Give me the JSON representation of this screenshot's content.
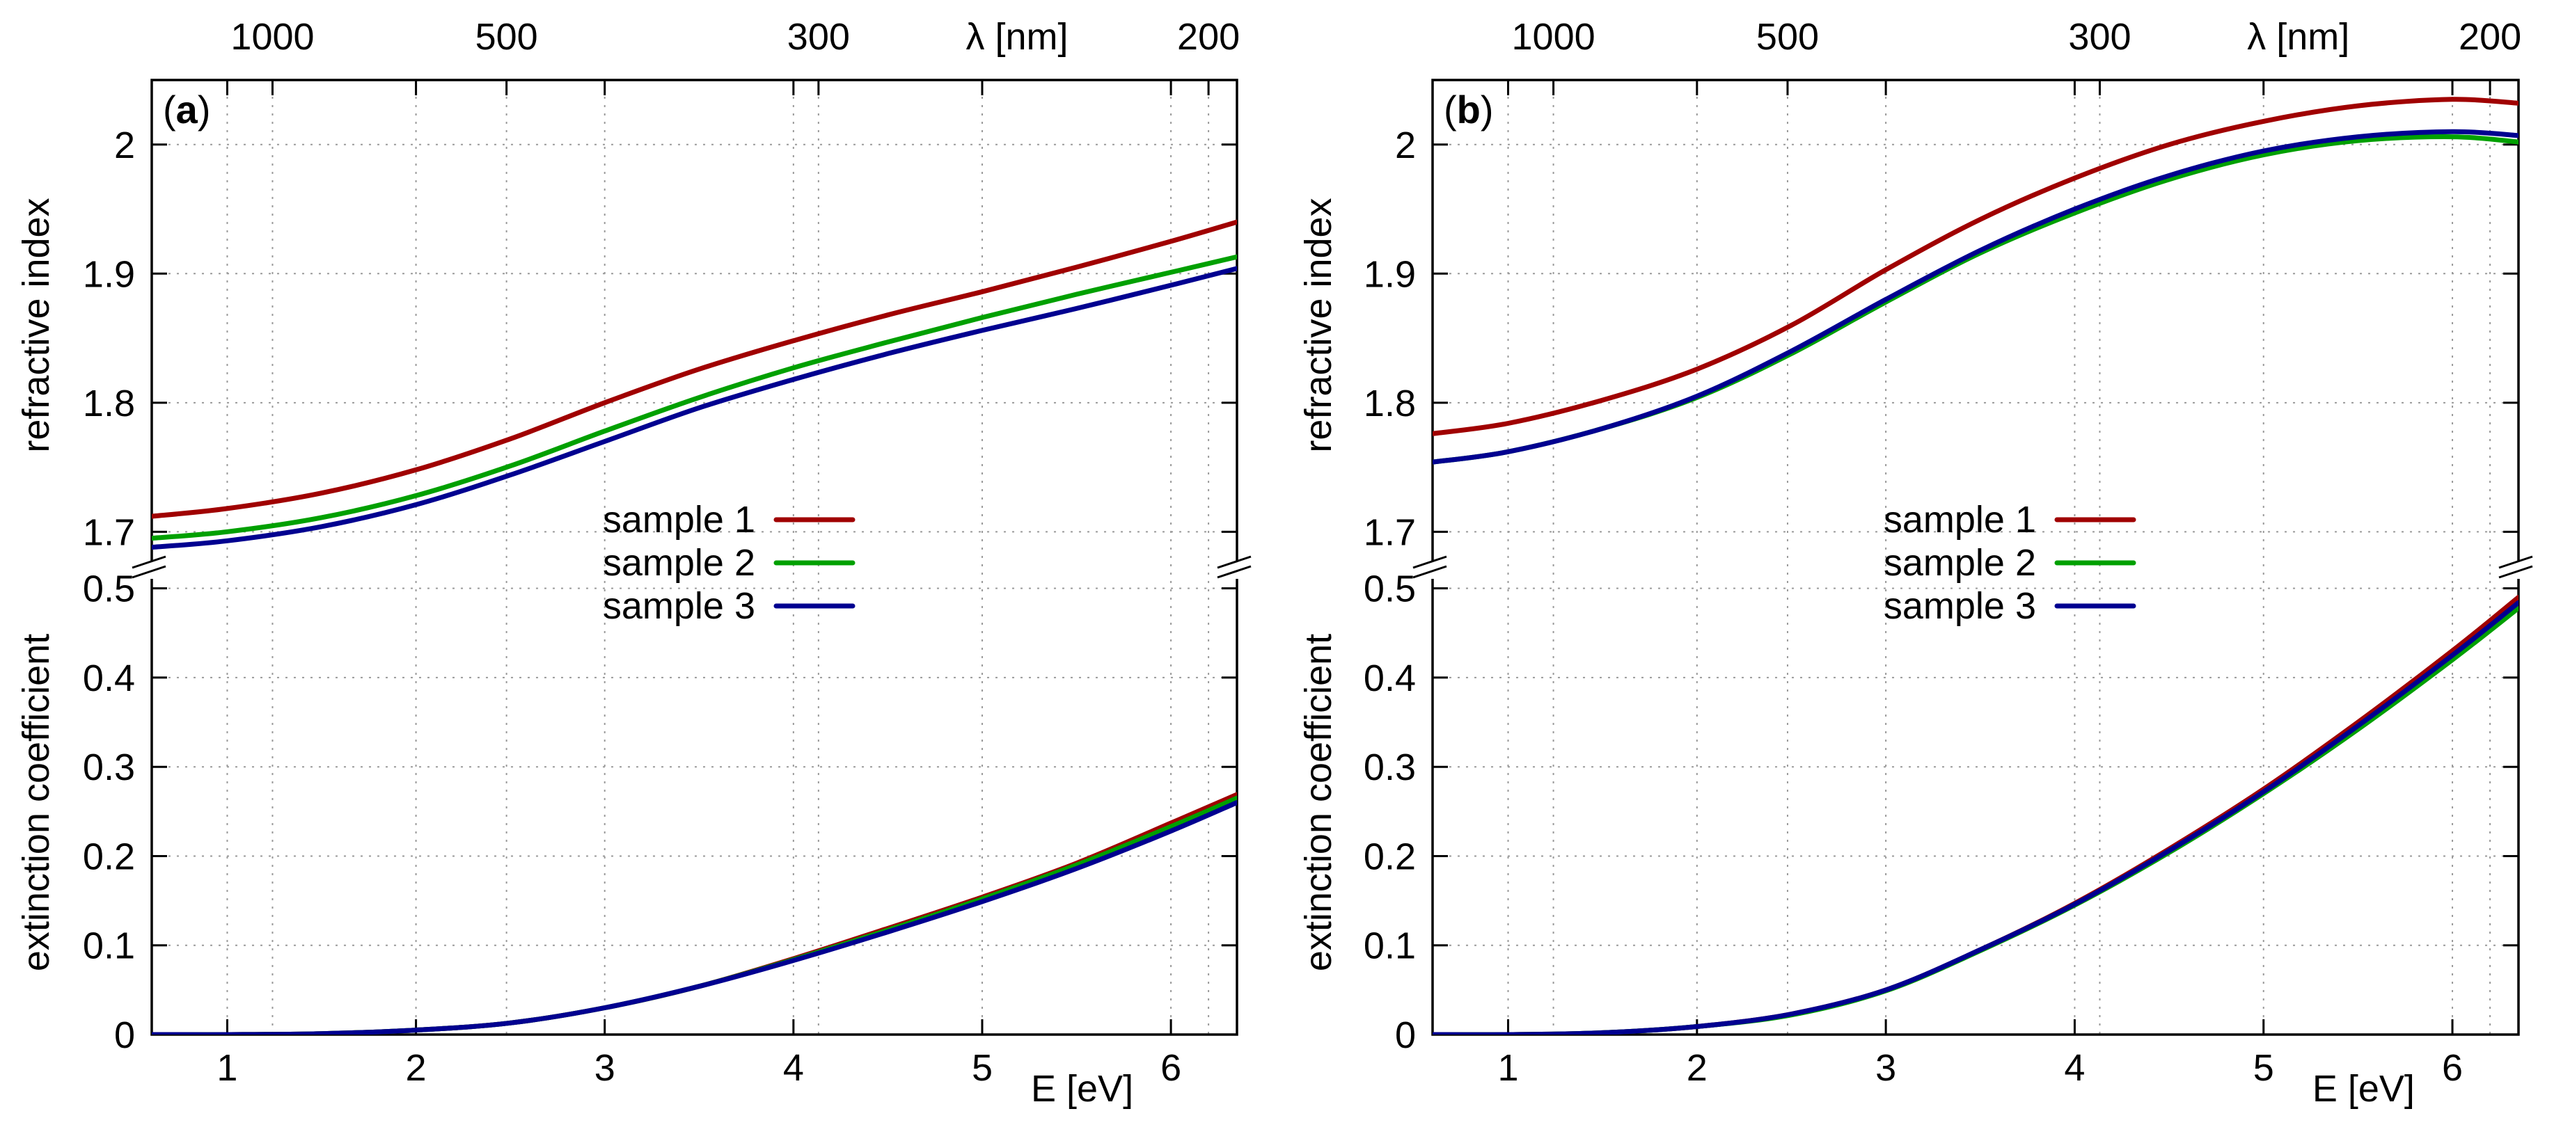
{
  "colors": {
    "sample1": "#a00000",
    "sample2": "#00a000",
    "sample3": "#000090"
  },
  "chart_data": [
    {
      "type": "line",
      "panel_label": "a",
      "x_unit_label": "E [eV]",
      "x_top_label": "λ [nm]",
      "xlim": [
        0.6,
        6.35
      ],
      "x_ticks": [
        1,
        2,
        3,
        4,
        5,
        6
      ],
      "x_tick_labels": [
        "1",
        "2",
        "3",
        "4",
        "5",
        "6"
      ],
      "top_ticks_nm": [
        1000,
        500,
        300,
        200
      ],
      "top_tick_labels": [
        "1000",
        "500",
        "300",
        "200"
      ],
      "legend": [
        "sample 1",
        "sample 2",
        "sample 3"
      ],
      "upper": {
        "ylabel": "refractive index",
        "ylim": [
          1.67,
          2.05
        ],
        "y_ticks": [
          1.7,
          1.8,
          1.9,
          2.0
        ],
        "y_tick_labels": [
          "1.7",
          "1.8",
          "1.9",
          "2"
        ],
        "x": [
          0.6,
          1.0,
          1.5,
          2.0,
          2.5,
          3.0,
          3.5,
          4.0,
          4.5,
          5.0,
          5.5,
          6.0,
          6.35
        ],
        "series": [
          {
            "name": "sample 1",
            "values": [
              1.712,
              1.718,
              1.73,
              1.748,
              1.772,
              1.8,
              1.826,
              1.848,
              1.868,
              1.886,
              1.905,
              1.925,
              1.94
            ]
          },
          {
            "name": "sample 2",
            "values": [
              1.695,
              1.7,
              1.711,
              1.728,
              1.751,
              1.778,
              1.804,
              1.827,
              1.847,
              1.866,
              1.884,
              1.901,
              1.913
            ]
          },
          {
            "name": "sample 3",
            "values": [
              1.688,
              1.693,
              1.704,
              1.721,
              1.744,
              1.77,
              1.796,
              1.818,
              1.838,
              1.856,
              1.873,
              1.891,
              1.904
            ]
          }
        ]
      },
      "lower": {
        "ylabel": "extinction coefficient",
        "ylim": [
          0,
          0.52
        ],
        "y_ticks": [
          0,
          0.1,
          0.2,
          0.3,
          0.4,
          0.5
        ],
        "y_tick_labels": [
          "0",
          "0.1",
          "0.2",
          "0.3",
          "0.4",
          "0.5"
        ],
        "x": [
          0.6,
          1.0,
          1.5,
          2.0,
          2.5,
          3.0,
          3.5,
          4.0,
          4.5,
          5.0,
          5.5,
          6.0,
          6.35
        ],
        "series": [
          {
            "name": "sample 1",
            "values": [
              0.0,
              0.0,
              0.001,
              0.005,
              0.013,
              0.03,
              0.054,
              0.085,
              0.119,
              0.154,
              0.192,
              0.237,
              0.269
            ]
          },
          {
            "name": "sample 2",
            "values": [
              0.0,
              0.0,
              0.001,
              0.005,
              0.013,
              0.03,
              0.054,
              0.084,
              0.117,
              0.152,
              0.19,
              0.233,
              0.265
            ]
          },
          {
            "name": "sample 3",
            "values": [
              0.0,
              0.0,
              0.001,
              0.005,
              0.013,
              0.03,
              0.054,
              0.083,
              0.115,
              0.149,
              0.186,
              0.228,
              0.26
            ]
          }
        ]
      }
    },
    {
      "type": "line",
      "panel_label": "b",
      "x_unit_label": "E [eV]",
      "x_top_label": "λ [nm]",
      "xlim": [
        0.6,
        6.35
      ],
      "x_ticks": [
        1,
        2,
        3,
        4,
        5,
        6
      ],
      "x_tick_labels": [
        "1",
        "2",
        "3",
        "4",
        "5",
        "6"
      ],
      "top_ticks_nm": [
        1000,
        500,
        300,
        200
      ],
      "top_tick_labels": [
        "1000",
        "500",
        "300",
        "200"
      ],
      "legend": [
        "sample 1",
        "sample 2",
        "sample 3"
      ],
      "upper": {
        "ylabel": "refractive index",
        "ylim": [
          1.67,
          2.05
        ],
        "y_ticks": [
          1.7,
          1.8,
          1.9,
          2.0
        ],
        "y_tick_labels": [
          "1.7",
          "1.8",
          "1.9",
          "2"
        ],
        "x": [
          0.6,
          1.0,
          1.5,
          2.0,
          2.5,
          3.0,
          3.5,
          4.0,
          4.5,
          5.0,
          5.5,
          6.0,
          6.35
        ],
        "series": [
          {
            "name": "sample 1",
            "values": [
              1.776,
              1.784,
              1.802,
              1.826,
              1.86,
              1.903,
              1.942,
              1.974,
              2.0,
              2.018,
              2.03,
              2.035,
              2.032
            ]
          },
          {
            "name": "sample 2",
            "values": [
              1.754,
              1.762,
              1.78,
              1.804,
              1.838,
              1.878,
              1.916,
              1.947,
              1.973,
              1.992,
              2.003,
              2.006,
              2.002
            ]
          },
          {
            "name": "sample 3",
            "values": [
              1.754,
              1.762,
              1.78,
              1.805,
              1.84,
              1.88,
              1.918,
              1.95,
              1.976,
              1.995,
              2.006,
              2.01,
              2.007
            ]
          }
        ]
      },
      "lower": {
        "ylabel": "extinction coefficient",
        "ylim": [
          0,
          0.52
        ],
        "y_ticks": [
          0,
          0.1,
          0.2,
          0.3,
          0.4,
          0.5
        ],
        "y_tick_labels": [
          "0",
          "0.1",
          "0.2",
          "0.3",
          "0.4",
          "0.5"
        ],
        "x": [
          0.6,
          1.0,
          1.5,
          2.0,
          2.5,
          3.0,
          3.5,
          4.0,
          4.5,
          5.0,
          5.5,
          6.0,
          6.35
        ],
        "series": [
          {
            "name": "sample 1",
            "values": [
              0.0,
              0.0,
              0.002,
              0.009,
              0.023,
              0.05,
              0.095,
              0.147,
              0.208,
              0.275,
              0.35,
              0.43,
              0.49
            ]
          },
          {
            "name": "sample 2",
            "values": [
              0.0,
              0.0,
              0.002,
              0.009,
              0.022,
              0.049,
              0.094,
              0.145,
              0.204,
              0.27,
              0.342,
              0.42,
              0.478
            ]
          },
          {
            "name": "sample 3",
            "values": [
              0.0,
              0.0,
              0.002,
              0.009,
              0.023,
              0.05,
              0.095,
              0.146,
              0.206,
              0.272,
              0.346,
              0.425,
              0.484
            ]
          }
        ]
      }
    }
  ]
}
